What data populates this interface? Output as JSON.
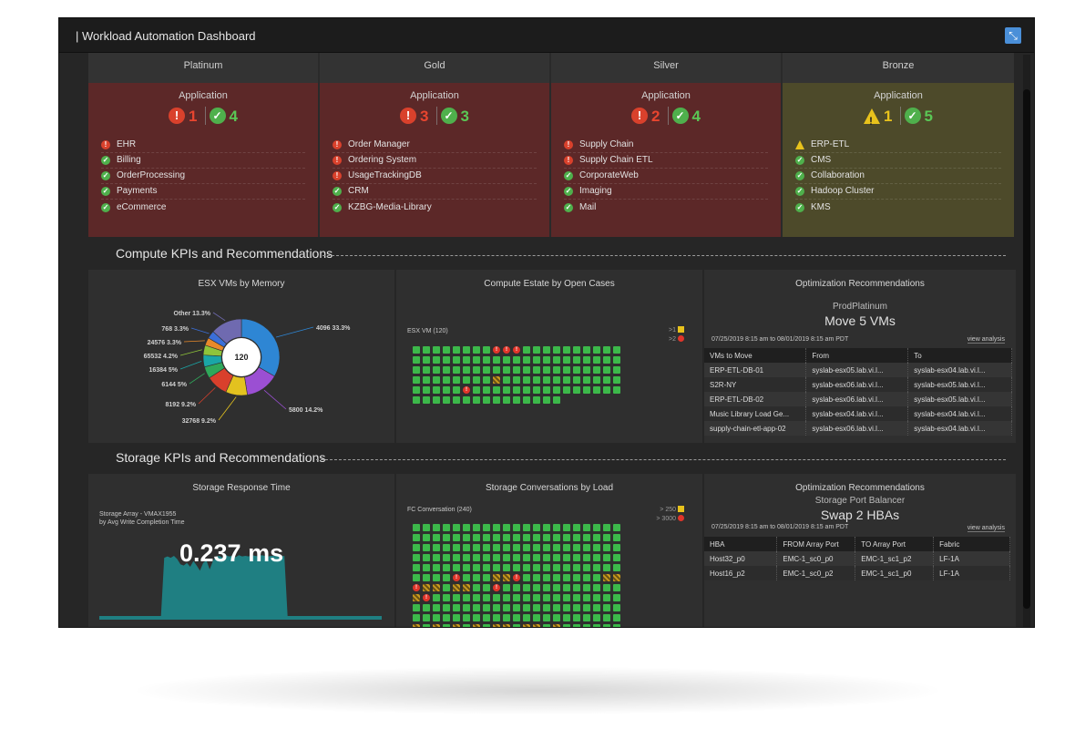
{
  "window": {
    "title": "| Workload Automation Dashboard"
  },
  "tiers": [
    {
      "name": "Platinum",
      "status": "red",
      "application_label": "Application",
      "counts": {
        "kind": "error",
        "bad": "1",
        "ok": "4"
      },
      "apps": [
        {
          "name": "EHR",
          "status": "error"
        },
        {
          "name": "Billing",
          "status": "ok"
        },
        {
          "name": "OrderProcessing",
          "status": "ok"
        },
        {
          "name": "Payments",
          "status": "ok"
        },
        {
          "name": "eCommerce",
          "status": "ok"
        }
      ]
    },
    {
      "name": "Gold",
      "status": "red",
      "application_label": "Application",
      "counts": {
        "kind": "error",
        "bad": "3",
        "ok": "3"
      },
      "apps": [
        {
          "name": "Order Manager",
          "status": "error"
        },
        {
          "name": "Ordering System",
          "status": "error"
        },
        {
          "name": "UsageTrackingDB",
          "status": "error"
        },
        {
          "name": "CRM",
          "status": "ok"
        },
        {
          "name": "KZBG-Media-Library",
          "status": "ok"
        }
      ]
    },
    {
      "name": "Silver",
      "status": "red",
      "application_label": "Application",
      "counts": {
        "kind": "error",
        "bad": "2",
        "ok": "4"
      },
      "apps": [
        {
          "name": "Supply Chain",
          "status": "error"
        },
        {
          "name": "Supply Chain ETL",
          "status": "error"
        },
        {
          "name": "CorporateWeb",
          "status": "ok"
        },
        {
          "name": "Imaging",
          "status": "ok"
        },
        {
          "name": "Mail",
          "status": "ok"
        }
      ]
    },
    {
      "name": "Bronze",
      "status": "yellow",
      "application_label": "Application",
      "counts": {
        "kind": "warning",
        "bad": "1",
        "ok": "5"
      },
      "apps": [
        {
          "name": "ERP-ETL",
          "status": "warning"
        },
        {
          "name": "CMS",
          "status": "ok"
        },
        {
          "name": "Collaboration",
          "status": "ok"
        },
        {
          "name": "Hadoop Cluster",
          "status": "ok"
        },
        {
          "name": "KMS",
          "status": "ok"
        }
      ]
    }
  ],
  "compute": {
    "section_title": "Compute KPIs and Recommendations",
    "esx_memory": {
      "title": "ESX VMs by Memory",
      "center_label": "120",
      "slices": [
        {
          "label": "4096 33.3%",
          "value": 33.3,
          "color": "#2e86d4"
        },
        {
          "label": "5800 14.2%",
          "value": 14.2,
          "color": "#9b4fd3"
        },
        {
          "label": "32768 9.2%",
          "value": 9.2,
          "color": "#e3c21f"
        },
        {
          "label": "8192 9.2%",
          "value": 9.2,
          "color": "#d9402c"
        },
        {
          "label": "6144 5%",
          "value": 5.0,
          "color": "#2fa85a"
        },
        {
          "label": "16384 5%",
          "value": 5.0,
          "color": "#1aa6a6"
        },
        {
          "label": "65532 4.2%",
          "value": 4.2,
          "color": "#8fc43a"
        },
        {
          "label": "24576 3.3%",
          "value": 3.3,
          "color": "#e8892a"
        },
        {
          "label": "768 3.3%",
          "value": 3.3,
          "color": "#3b6fd9"
        },
        {
          "label": "Other 13.3%",
          "value": 13.3,
          "color": "#6f6ab0"
        }
      ]
    },
    "estate": {
      "title": "Compute Estate by Open Cases",
      "caption": "ESX VM (120)",
      "legend": [
        ">1",
        ">2"
      ],
      "columns": 21,
      "total": 120,
      "markers": [
        {
          "index": 8,
          "type": "err"
        },
        {
          "index": 9,
          "type": "err"
        },
        {
          "index": 10,
          "type": "err"
        },
        {
          "index": 71,
          "type": "warn"
        },
        {
          "index": 89,
          "type": "err"
        }
      ]
    },
    "optimization": {
      "title": "Optimization Recommendations",
      "subtitle": "ProdPlatinum",
      "headline": "Move 5 VMs",
      "date_range": "07/25/2019 8:15 am to 08/01/2019 8:15 am PDT",
      "view_link": "view analysis",
      "columns": [
        "VMs to Move",
        "From",
        "To"
      ],
      "rows": [
        [
          "ERP-ETL-DB-01",
          "syslab-esx05.lab.vi.l...",
          "syslab-esx04.lab.vi.l..."
        ],
        [
          "S2R-NY",
          "syslab-esx06.lab.vi.l...",
          "syslab-esx05.lab.vi.l..."
        ],
        [
          "ERP-ETL-DB-02",
          "syslab-esx06.lab.vi.l...",
          "syslab-esx05.lab.vi.l..."
        ],
        [
          "Music Library Load Ge...",
          "syslab-esx04.lab.vi.l...",
          "syslab-esx04.lab.vi.l..."
        ],
        [
          "supply-chain-etl-app-02",
          "syslab-esx06.lab.vi.l...",
          "syslab-esx04.lab.vi.l..."
        ]
      ]
    }
  },
  "storage": {
    "section_title": "Storage KPIs and Recommendations",
    "response": {
      "title": "Storage Response Time",
      "caption_line1": "Storage Array - VMAX1955",
      "caption_line2": "by Avg Write Completion Time",
      "value": "0.237 ms",
      "series": [
        0,
        0,
        0,
        0,
        0,
        0,
        0,
        0,
        0,
        0,
        0,
        0,
        0,
        0,
        0,
        0,
        0,
        0,
        0,
        0,
        0.9,
        0.92,
        0.9,
        0.93,
        0.88,
        0.8,
        0.78,
        0.82,
        0.76,
        0.85,
        0.78,
        0.7,
        0.82,
        0.86,
        0.72,
        0.85,
        0.92,
        0.93,
        0.9,
        0.94,
        0.92,
        0.93,
        0.91,
        0.94,
        0.92,
        0.93,
        0.92,
        0.94,
        0.93,
        0.92,
        0.94,
        0.93,
        0.92,
        0.93,
        0.93,
        0.92,
        0.92,
        0.93,
        0,
        0,
        0,
        0,
        0,
        0,
        0,
        0,
        0,
        0,
        0,
        0,
        0,
        0,
        0,
        0,
        0,
        0,
        0,
        0,
        0,
        0,
        0,
        0,
        0,
        0,
        0,
        0,
        0,
        0
      ]
    },
    "conversations": {
      "title": "Storage Conversations by Load",
      "caption": "FC Conversation (240)",
      "legend": [
        "> 250",
        "> 3000"
      ],
      "columns": 21,
      "total": 240,
      "markers": [
        {
          "index": 109,
          "type": "err"
        },
        {
          "index": 113,
          "type": "warn"
        },
        {
          "index": 114,
          "type": "warn"
        },
        {
          "index": 115,
          "type": "err"
        },
        {
          "index": 124,
          "type": "warn"
        },
        {
          "index": 125,
          "type": "warn"
        },
        {
          "index": 126,
          "type": "err"
        },
        {
          "index": 127,
          "type": "warn"
        },
        {
          "index": 128,
          "type": "warn"
        },
        {
          "index": 130,
          "type": "warn"
        },
        {
          "index": 131,
          "type": "warn"
        },
        {
          "index": 134,
          "type": "err"
        },
        {
          "index": 147,
          "type": "warn"
        },
        {
          "index": 148,
          "type": "err"
        },
        {
          "index": 210,
          "type": "warn"
        },
        {
          "index": 212,
          "type": "warn"
        },
        {
          "index": 214,
          "type": "warn"
        },
        {
          "index": 216,
          "type": "warn"
        },
        {
          "index": 218,
          "type": "warn"
        },
        {
          "index": 219,
          "type": "warn"
        },
        {
          "index": 221,
          "type": "warn"
        },
        {
          "index": 222,
          "type": "warn"
        },
        {
          "index": 224,
          "type": "warn"
        }
      ]
    },
    "optimization": {
      "title": "Optimization Recommendations",
      "subtitle": "Storage Port Balancer",
      "headline": "Swap 2 HBAs",
      "date_range": "07/25/2019 8:15 am to 08/01/2019 8:15 am PDT",
      "view_link": "view analysis",
      "columns": [
        "HBA",
        "FROM Array Port",
        "TO Array Port",
        "Fabric"
      ],
      "rows": [
        [
          "Host32_p0",
          "EMC-1_sc0_p0",
          "EMC-1_sc1_p2",
          "LF-1A"
        ],
        [
          "Host16_p2",
          "EMC-1_sc0_p2",
          "EMC-1_sc1_p0",
          "LF-1A"
        ]
      ]
    }
  }
}
